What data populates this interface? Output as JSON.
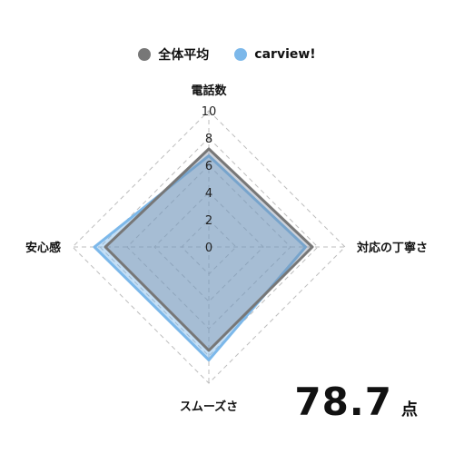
{
  "chart_data": {
    "type": "radar",
    "axes": [
      "電話数",
      "対応の丁寧さ",
      "スムーズさ",
      "安心感"
    ],
    "ticks": [
      "0",
      "2",
      "4",
      "6",
      "8",
      "10"
    ],
    "range": [
      0,
      10
    ],
    "grid": true,
    "legend_position": "top-center",
    "series": [
      {
        "name": "全体平均",
        "values": [
          7.2,
          7.6,
          7.6,
          7.6
        ],
        "color": "#777777"
      },
      {
        "name": "carview!",
        "values": [
          6.7,
          7.1,
          8.3,
          8.4
        ],
        "color": "#7cb8ea"
      }
    ]
  },
  "score": {
    "value": "78.7",
    "unit": "点"
  }
}
